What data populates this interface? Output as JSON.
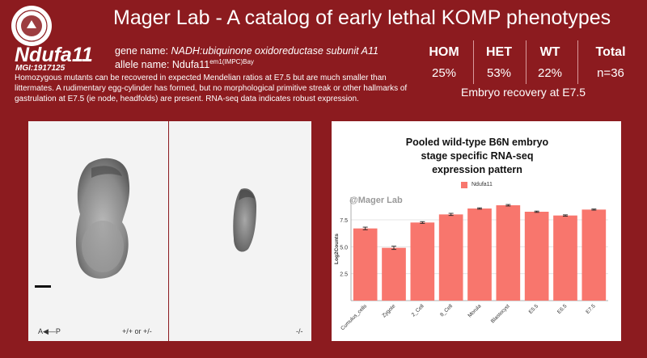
{
  "header": {
    "title": "Mager Lab - A catalog of early lethal KOMP phenotypes"
  },
  "gene": {
    "symbol": "Ndufa11",
    "mgi": "MGI:1917125",
    "gene_name_label": "gene name:",
    "gene_name": "NADH:ubiquinone oxidoreductase subunit A11",
    "allele_name_label": "allele name:",
    "allele_base": "Ndufa11",
    "allele_sup": "em1(IMPC)Bay",
    "description": "Homozygous mutants can be recovered in expected Mendelian ratios at E7.5 but are much smaller than littermates. A rudimentary egg-cylinder has formed, but no morphological primitive streak or other hallmarks of gastrulation at E7.5 (ie node, headfolds) are present. RNA-seq data indicates robust expression."
  },
  "recovery": {
    "hom_label": "HOM",
    "hom_pct": "25%",
    "het_label": "HET",
    "het_pct": "53%",
    "wt_label": "WT",
    "wt_pct": "22%",
    "total_label": "Total",
    "total_n": "n=36",
    "caption": "Embryo recovery at E7.5"
  },
  "images": {
    "ap_label": "A◀—P",
    "left_genotype": "+/+ or +/-",
    "right_genotype": "-/-"
  },
  "chart_data": {
    "type": "bar",
    "title_lines": [
      "Pooled wild-type B6N embryo",
      "stage specific RNA-seq",
      "expression pattern"
    ],
    "watermark": "@Mager Lab",
    "ylabel": "Log2Counts",
    "xlabel": "",
    "categories": [
      "Cumulus_cells",
      "Zygote",
      "2_Cell",
      "8_Cell",
      "Morula",
      "Blastocyst",
      "E5.5",
      "E6.5",
      "E7.5"
    ],
    "series": [
      {
        "name": "Ndufa11",
        "values": [
          6.7,
          4.9,
          7.25,
          8.0,
          8.55,
          8.85,
          8.25,
          7.9,
          8.45
        ],
        "errors": [
          0.12,
          0.15,
          0.08,
          0.1,
          0.06,
          0.07,
          0.06,
          0.06,
          0.05
        ]
      }
    ],
    "yticks": [
      2.5,
      5.0,
      7.5
    ],
    "ylim": [
      0,
      9.6
    ],
    "color": "#f8766d",
    "grid": true,
    "legend": "top"
  }
}
